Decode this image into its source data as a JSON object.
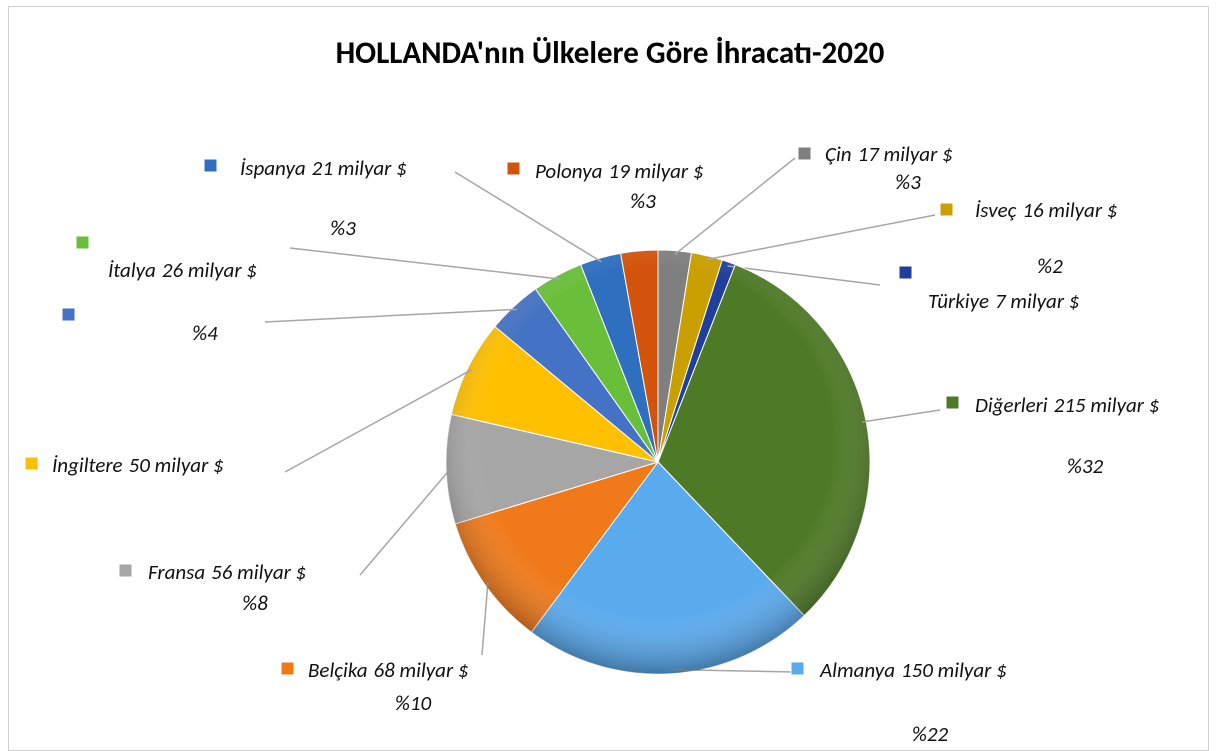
{
  "chart_data": {
    "type": "pie",
    "title": "HOLLANDA'nın Ülkelere Göre İhracatı-2020",
    "categories": [
      "Çin",
      "İsveç",
      "Türkiye",
      "Diğerleri",
      "Almanya",
      "Belçika",
      "Fransa",
      "İngiltere",
      null,
      "İtalya",
      "İspanya",
      "Polonya"
    ],
    "values": [
      17,
      16,
      7,
      215,
      150,
      68,
      56,
      50,
      28,
      26,
      21,
      19
    ],
    "value_labels": [
      "17 milyar $",
      "16 milyar $",
      "7 milyar $",
      "215 milyar $",
      "150 milyar $",
      "68 milyar $",
      "56 milyar $",
      "50 milyar $",
      null,
      "26 milyar $",
      "21 milyar $",
      "19 milyar $"
    ],
    "percent_labels": [
      "%3",
      "%2",
      null,
      "%32",
      "%22",
      "%10",
      "%8",
      null,
      null,
      "%4",
      "%3",
      "%3"
    ],
    "colors": [
      "#7f7f7f",
      "#c9a000",
      "#1f3f9a",
      "#4e7a26",
      "#5aaaee",
      "#f07a1a",
      "#a6a6a6",
      "#ffc000",
      "#4472c4",
      "#6abf3a",
      "#2e6fbf",
      "#d4530c"
    ]
  }
}
